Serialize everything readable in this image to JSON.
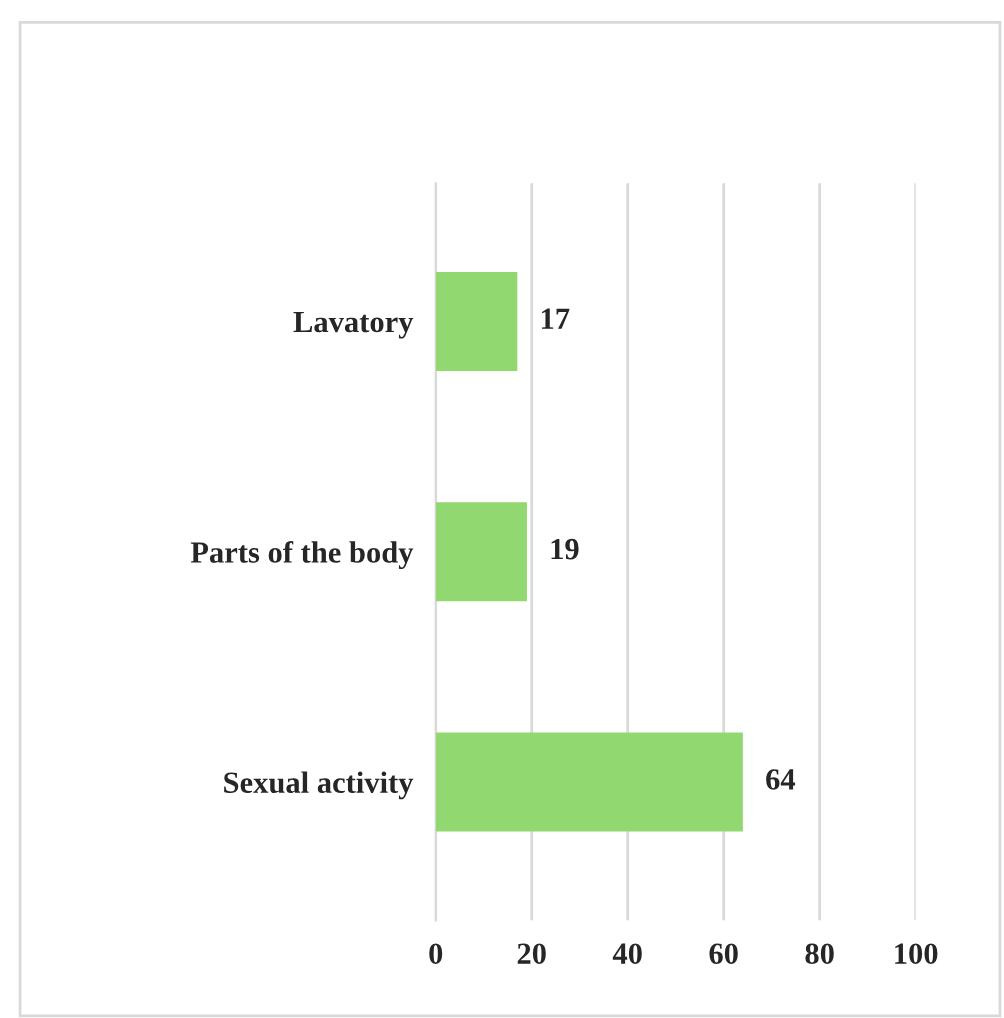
{
  "chart_data": {
    "type": "bar",
    "orientation": "horizontal",
    "categories": [
      "Lavatory",
      "Parts of the body",
      "Sexual activity"
    ],
    "values": [
      17,
      19,
      64
    ],
    "color": "#92d870",
    "xlim": [
      0,
      100
    ],
    "xticks": [
      0,
      20,
      40,
      60,
      80,
      100
    ],
    "grid": "x",
    "data_labels": true,
    "legend": false
  }
}
